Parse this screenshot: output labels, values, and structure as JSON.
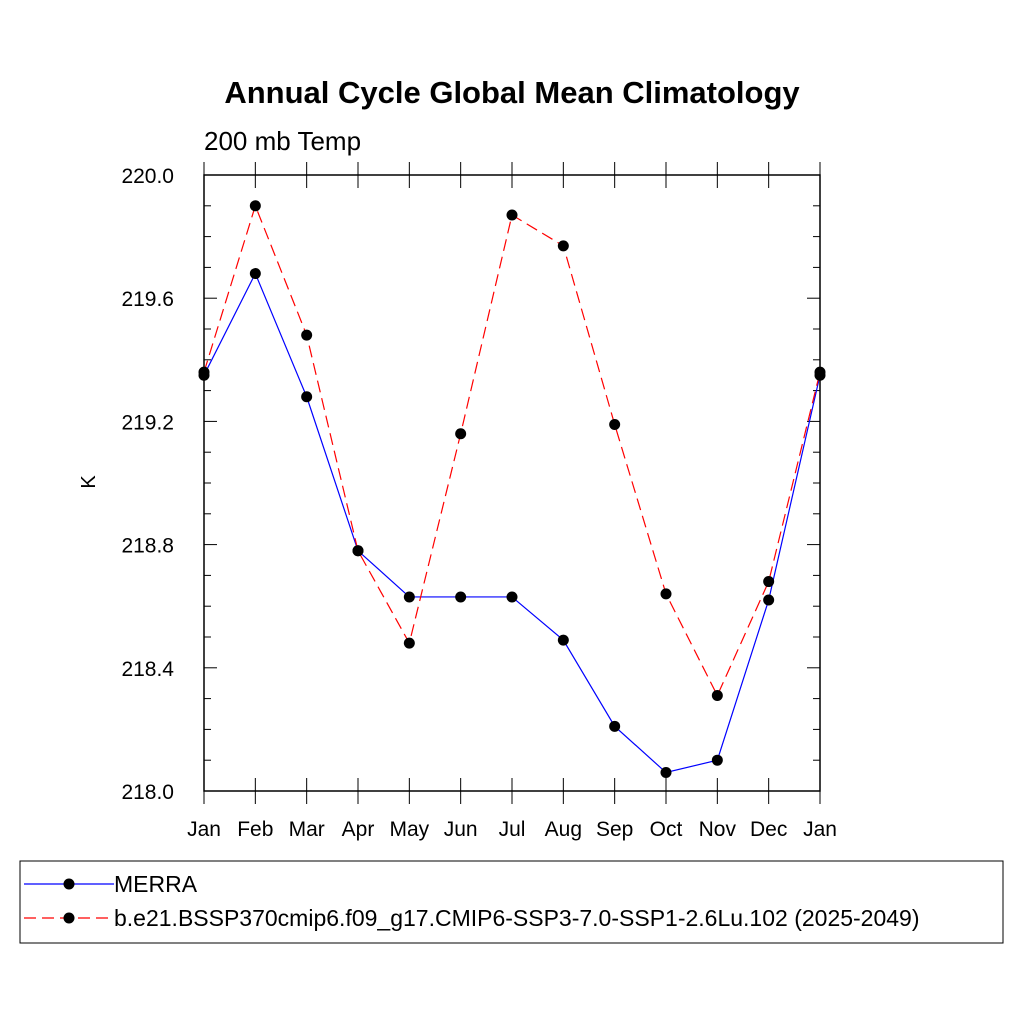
{
  "chart_data": {
    "type": "line",
    "title": "Annual Cycle Global Mean Climatology",
    "subtitle": "200 mb Temp",
    "xlabel": "",
    "ylabel": "K",
    "categories": [
      "Jan",
      "Feb",
      "Mar",
      "Apr",
      "May",
      "Jun",
      "Jul",
      "Aug",
      "Sep",
      "Oct",
      "Nov",
      "Dec",
      "Jan"
    ],
    "ylim": [
      218.0,
      220.0
    ],
    "yticks": [
      218.0,
      218.4,
      218.8,
      219.2,
      219.6,
      220.0
    ],
    "ytick_labels": [
      "218.0",
      "218.4",
      "218.8",
      "219.2",
      "219.6",
      "220.0"
    ],
    "series": [
      {
        "name": "MERRA",
        "color": "#0000ff",
        "dash": "solid",
        "values": [
          219.35,
          219.68,
          219.28,
          218.78,
          218.63,
          218.63,
          218.63,
          218.49,
          218.21,
          218.06,
          218.1,
          218.62,
          219.35
        ]
      },
      {
        "name": "b.e21.BSSP370cmip6.f09_g17.CMIP6-SSP3-7.0-SSP1-2.6Lu.102 (2025-2049)",
        "color": "#ff0000",
        "dash": "dashed",
        "values": [
          219.36,
          219.9,
          219.48,
          218.78,
          218.48,
          219.16,
          219.87,
          219.77,
          219.19,
          218.64,
          218.31,
          218.68,
          219.36
        ]
      }
    ],
    "legend_position": "bottom"
  }
}
